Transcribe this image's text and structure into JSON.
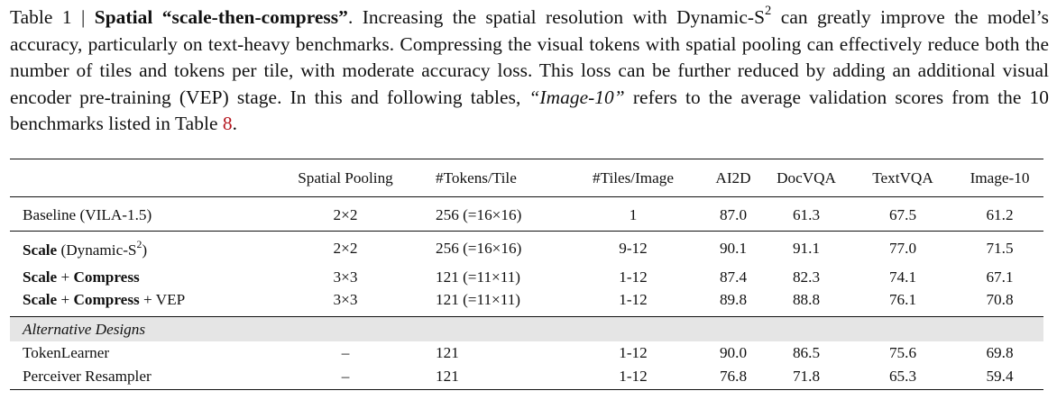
{
  "caption": {
    "label": "Table 1 | ",
    "title": "Spatial “scale-then-compress”",
    "text1": ". Increasing the spatial resolution with Dynamic-S",
    "sup": "2",
    "text2": " can greatly improve the model’s accuracy, particularly on text-heavy benchmarks. Compressing the visual tokens with spatial pooling can effectively reduce both the number of tiles and tokens per tile, with moderate accuracy loss. This loss can be further reduced by adding an additional visual encoder pre-training (VEP) stage. In this and following tables, ",
    "italic": "“Image-10”",
    "text3": " refers to the average validation scores from the 10 benchmarks listed in Table ",
    "ref": "8",
    "end": "."
  },
  "table": {
    "headers": [
      "",
      "Spatial Pooling",
      "#Tokens/Tile",
      "#Tiles/Image",
      "AI2D",
      "DocVQA",
      "TextVQA",
      "Image-10"
    ],
    "baseline": [
      "Baseline (VILA-1.5)",
      "2×2",
      "256 (=16×16)",
      "1",
      "87.0",
      "61.3",
      "67.5",
      "61.2"
    ],
    "scale": {
      "name_bold": "Scale",
      "name_rest": " (Dynamic-S",
      "name_sup": "2",
      "name_close": ")",
      "cells": [
        "2×2",
        "256 (=16×16)",
        "9-12",
        "90.1",
        "91.1",
        "77.0",
        "71.5"
      ]
    },
    "scale_compress": {
      "b1": "Scale",
      "plus": " + ",
      "b2": "Compress",
      "cells": [
        "3×3",
        "121 (=11×11)",
        "1-12",
        "87.4",
        "82.3",
        "74.1",
        "67.1"
      ]
    },
    "scale_compress_vep": {
      "b1": "Scale",
      "plus1": " + ",
      "b2": "Compress",
      "rest": " + VEP",
      "cells": [
        "3×3",
        "121 (=11×11)",
        "1-12",
        "89.8",
        "88.8",
        "76.1",
        "70.8"
      ]
    },
    "alt_section": "Alternative Designs",
    "alt_rows": [
      [
        "TokenLearner",
        "–",
        "121",
        "1-12",
        "90.0",
        "86.5",
        "75.6",
        "69.8"
      ],
      [
        "Perceiver Resampler",
        "–",
        "121",
        "1-12",
        "76.8",
        "71.8",
        "65.3",
        "59.4"
      ]
    ]
  }
}
